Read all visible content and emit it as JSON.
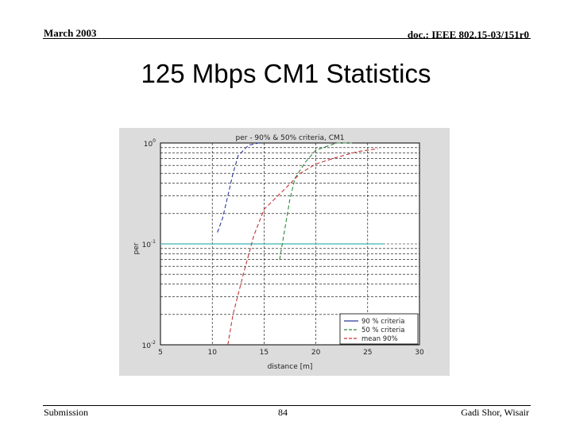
{
  "slide": {
    "date": "March 2003",
    "doc_id": "doc.: IEEE 802.15-03/151r0",
    "title": "125 Mbps CM1 Statistics",
    "footer_left": "Submission",
    "page_number": "84",
    "author": "Gadi Shor, Wisair"
  },
  "chart_data": {
    "type": "line",
    "title": "per - 90% & 50% criteria, CM1",
    "xlabel": "distance [m]",
    "ylabel": "per",
    "xlim": [
      5,
      30
    ],
    "ylim": [
      0.01,
      1
    ],
    "yscale": "log",
    "x_ticks": [
      "5",
      "10",
      "15",
      "20",
      "25",
      "30"
    ],
    "y_ticks": [
      "10^0",
      "10^-1",
      "10^-2"
    ],
    "grid": true,
    "legend_position": "bottom-right",
    "colors": {
      "background": "#dcdcdc",
      "plot": "#ffffff",
      "s90": "#2a3a9a",
      "s50": "#2e8a3e",
      "smean": "#c83232",
      "ref": "#40b4b4"
    },
    "series": [
      {
        "name": "90 % criteria",
        "color": "#2a3a9a",
        "x": [
          10.5,
          11.0,
          11.5,
          12.0,
          12.5,
          13.5,
          14.5
        ],
        "y": [
          0.13,
          0.18,
          0.3,
          0.5,
          0.75,
          0.95,
          1.0
        ]
      },
      {
        "name": "50 % criteria",
        "color": "#2e8a3e",
        "x": [
          16.5,
          17.0,
          17.5,
          18.0,
          19.0,
          20.0,
          22.0,
          23.5
        ],
        "y": [
          0.07,
          0.14,
          0.28,
          0.45,
          0.65,
          0.85,
          1.0,
          1.0
        ]
      },
      {
        "name": "mean 90%",
        "color": "#c83232",
        "x": [
          11.5,
          12.0,
          13.0,
          14.0,
          15.0,
          17.0,
          18.5,
          20.0,
          22.0,
          24.0,
          26.0
        ],
        "y": [
          0.01,
          0.02,
          0.05,
          0.12,
          0.22,
          0.35,
          0.5,
          0.62,
          0.72,
          0.82,
          0.88
        ]
      }
    ],
    "reference_line": {
      "y": 0.1,
      "x_start": 5,
      "x_end": 26.5,
      "color": "#40b4b4"
    }
  }
}
